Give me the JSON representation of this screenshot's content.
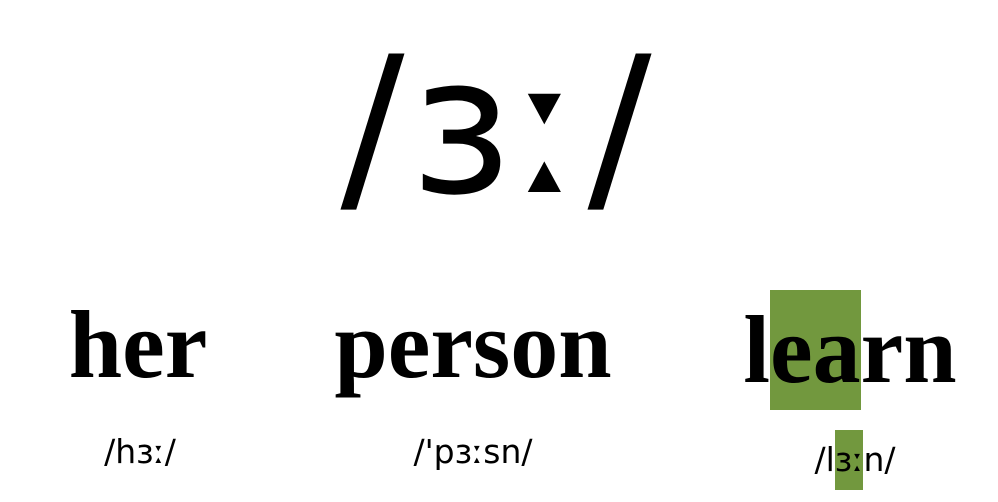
{
  "symbol": "/ɜː/",
  "examples": [
    {
      "word": "her",
      "ipa": "/hɜː/"
    },
    {
      "word": "person",
      "ipa": "/'pɜːsn/"
    },
    {
      "word_before": "l",
      "word_highlight": "ea",
      "word_after": "rn",
      "ipa_before": "/l",
      "ipa_highlight": "ɜː",
      "ipa_after": "n/"
    }
  ],
  "highlight_color": "#72983e"
}
